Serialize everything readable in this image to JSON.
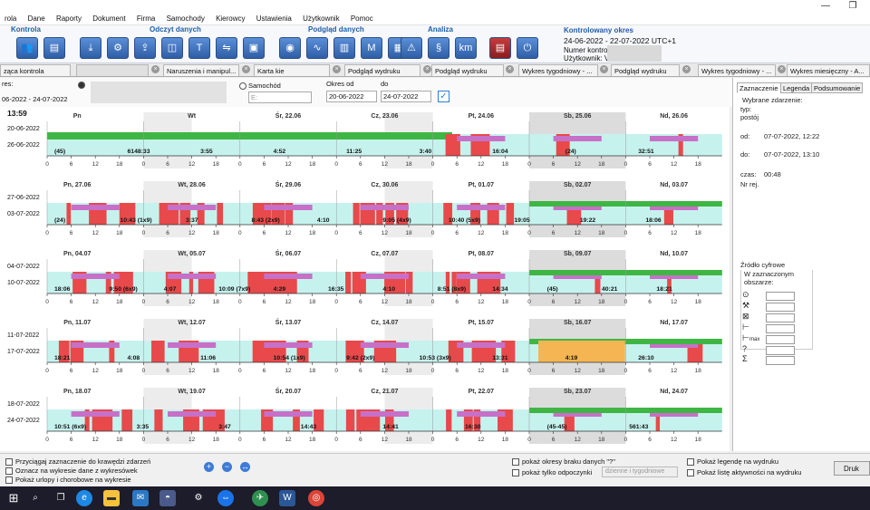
{
  "menu": [
    "rola",
    "Dane",
    "Raporty",
    "Dokument",
    "Firma",
    "Samochody",
    "Kierowcy",
    "Ustawienia",
    "Użytkownik",
    "Pomoc"
  ],
  "ribbon": {
    "groups": [
      "Kontrola",
      "Odczyt danych",
      "Podgląd danych",
      "Analiza"
    ]
  },
  "period": {
    "title": "Kontrolowany okres",
    "range": "24-06-2022 - 22-07-2022 UTC+1",
    "numer": "Numer kontro",
    "user": "Użytkownik: V"
  },
  "tabs": [
    "ząca kontrola",
    "Naruszenia i manipul...",
    "Karta kie",
    "Podgląd wydruku",
    "Podgląd wydruku",
    "Wykres tygodniowy - ...",
    "Podgląd wydruku",
    "Wykres tygodniowy - ...",
    "Wykres miesięczny - A..."
  ],
  "filter": {
    "res": "res:",
    "range": "06-2022 - 24-07-2022",
    "samochod": "Samochód",
    "okres_od": "Okres od",
    "do": "do",
    "date_from": "20-06-2022",
    "date_to": "24-07-2022",
    "time": "13:59",
    "vehicle_prefix": "E:"
  },
  "weeks": [
    {
      "d1": "20-06-2022",
      "d2": "26-06-2022",
      "days": [
        "Pn",
        "Wt",
        "Śr, 22.06",
        "Cz, 23.06",
        "Pt, 24.06",
        "Sb, 25.06",
        "Nd, 26.06"
      ]
    },
    {
      "d1": "27-06-2022",
      "d2": "03-07-2022",
      "days": [
        "Pn, 27.06",
        "Wt, 28.06",
        "Śr, 29.06",
        "Cz, 30.06",
        "Pt, 01.07",
        "Sb, 02.07",
        "Nd, 03.07"
      ]
    },
    {
      "d1": "04-07-2022",
      "d2": "10-07-2022",
      "days": [
        "Pn, 04.07",
        "Wt, 05.07",
        "Śr, 06.07",
        "Cz, 07.07",
        "Pt, 08.07",
        "Sb, 09.07",
        "Nd, 10.07"
      ]
    },
    {
      "d1": "11-07-2022",
      "d2": "17-07-2022",
      "days": [
        "Pn, 11.07",
        "Wt, 12.07",
        "Śr, 13.07",
        "Cz, 14.07",
        "Pt, 15.07",
        "Sb, 16.07",
        "Nd, 17.07"
      ]
    },
    {
      "d1": "18-07-2022",
      "d2": "24-07-2022",
      "days": [
        "Pn, 18.07",
        "Wt, 19.07",
        "Śr, 20.07",
        "Cz, 21.07",
        "Pt, 22.07",
        "Sb, 23.07",
        "Nd, 24.07"
      ]
    }
  ],
  "ticks": [
    "0",
    "6",
    "12",
    "18"
  ],
  "labels": [
    [
      "(45)",
      "6148:33",
      "3:55",
      "4:52",
      "11:25",
      "3:40",
      "16:04",
      "(24)",
      "32:51"
    ],
    [
      "(24)",
      "10:43 (1x9)",
      "3:37",
      "8:43 (2x9)",
      "4:10",
      "9:05 (4x9)",
      "10:40 (5x9)",
      "19:05",
      "19:22",
      "18:06"
    ],
    [
      "18:06",
      "9:50 (6x9)",
      "4:07",
      "10:09 (7x9)",
      "4:29",
      "16:35",
      "4:10",
      "8:51 (8x9)",
      "14:34",
      "(45)",
      "40:21",
      "18:21"
    ],
    [
      "18:21",
      "4:08",
      "11:06",
      "10:54 (1x9)",
      "9:42 (2x9)",
      "10:53 (3x9)",
      "13:31",
      "4:19",
      "26:10"
    ],
    [
      "10:51 (6x9)",
      "3:35",
      "3:47",
      "14:43",
      "14:41",
      "16:30",
      "(45-45)",
      "561:43"
    ]
  ],
  "right": {
    "tabs": [
      "Zaznaczenie",
      "Legenda",
      "Podsumowanie"
    ],
    "wybrane": "Wybrane zdarzenie:",
    "typ": "typ:",
    "typ_val": "postój",
    "od": "od:",
    "od_val": "07-07-2022, 12:22",
    "do": "do:",
    "do_val": "07-07-2022, 13:10",
    "czas": "czas:",
    "czas_val": "00:48",
    "nr": "Nr rej.",
    "zrodlo": "Źródło cyfrowe",
    "w_zazn": "W zaznaczonym",
    "obszarze": "obszarze:",
    "max": "max"
  },
  "bottom": {
    "cb1": "Przyciągaj zaznaczenie do krawędzi zdarzeń",
    "cb2": "Oznacz na wykresie dane z wykresówek",
    "cb3": "Pokaż urlopy i chorobowe na wykresie",
    "cb4": "pokaż okresy braku danych \"?\"",
    "cb5": "pokaż tylko odpoczynki",
    "sel": "dzienne i tygodniowe",
    "cb6": "Pokaż legendę na wydruku",
    "cb7": "Pokaż listę aktywności na wydruku",
    "print": "Druk"
  },
  "colors": {
    "drive": "#e8494a",
    "rest": "#c6f2ee",
    "work": "#c770c7",
    "green": "#3fb644",
    "weekend": "#dcdcdc",
    "orange": "#f5b552",
    "blue": "#3d7bd6"
  }
}
